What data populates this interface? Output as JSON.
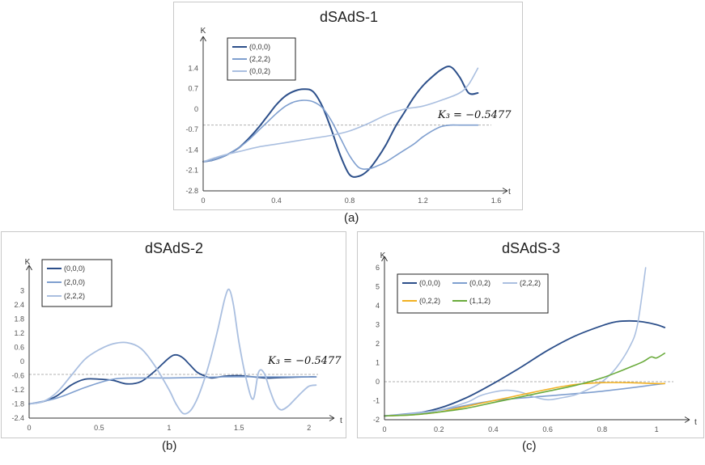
{
  "colors": {
    "dark": "#2c4f8a",
    "medium": "#7f9fcf",
    "light": "#aabfe0",
    "yellow": "#f2b122",
    "green": "#6aab3c",
    "ref": "#b0b0b0"
  },
  "chart_data": [
    {
      "type": "line",
      "title": "dSAdS-1",
      "caption": "(a)",
      "xlabel": "t",
      "ylabel": "K",
      "xlim": [
        0,
        1.6
      ],
      "ylim": [
        -2.8,
        2.1
      ],
      "xticks": [
        0,
        0.4,
        0.8,
        1.2,
        1.6
      ],
      "xtick_labels": [
        "0",
        "0.4",
        "0.8",
        "1.2",
        "1.6"
      ],
      "yticks": [
        1.4,
        0.7,
        0,
        -0.7,
        -1.4,
        -2.1,
        -2.8
      ],
      "ytick_labels": [
        "1.4",
        "0.7",
        "0",
        "-0.7",
        "-1.4",
        "-2.1",
        "-2.8"
      ],
      "reference_line": -0.5477,
      "annotation": "K₃ = −0.5477",
      "series": [
        {
          "name": "(0,0,0)",
          "color": "#2c4f8a",
          "width": 2.0,
          "x": [
            0,
            0.05,
            0.1,
            0.15,
            0.2,
            0.25,
            0.3,
            0.35,
            0.4,
            0.45,
            0.5,
            0.55,
            0.6,
            0.65,
            0.7,
            0.75,
            0.8,
            0.85,
            0.9,
            0.95,
            1.0,
            1.05,
            1.1,
            1.15,
            1.2,
            1.25,
            1.3,
            1.35,
            1.4,
            1.45,
            1.5
          ],
          "y": [
            -1.8,
            -1.75,
            -1.65,
            -1.5,
            -1.3,
            -1.0,
            -0.65,
            -0.25,
            0.15,
            0.45,
            0.62,
            0.68,
            0.6,
            0.1,
            -0.7,
            -1.6,
            -2.25,
            -2.3,
            -2.1,
            -1.7,
            -1.2,
            -0.6,
            -0.1,
            0.4,
            0.8,
            1.1,
            1.35,
            1.45,
            1.1,
            0.55,
            0.55
          ]
        },
        {
          "name": "(2,2,2)",
          "color": "#7f9fcf",
          "width": 1.6,
          "x": [
            0,
            0.05,
            0.1,
            0.15,
            0.2,
            0.25,
            0.3,
            0.35,
            0.4,
            0.45,
            0.5,
            0.55,
            0.6,
            0.65,
            0.7,
            0.75,
            0.8,
            0.85,
            0.9,
            0.95,
            1.0,
            1.05,
            1.1,
            1.15,
            1.2,
            1.25,
            1.3,
            1.35,
            1.4,
            1.45,
            1.5
          ],
          "y": [
            -1.8,
            -1.75,
            -1.65,
            -1.5,
            -1.3,
            -1.05,
            -0.75,
            -0.45,
            -0.15,
            0.1,
            0.25,
            0.3,
            0.25,
            0.05,
            -0.4,
            -1.0,
            -1.6,
            -2.0,
            -2.05,
            -1.95,
            -1.8,
            -1.6,
            -1.4,
            -1.2,
            -0.95,
            -0.75,
            -0.6,
            -0.55,
            -0.55,
            -0.55,
            -0.55
          ]
        },
        {
          "name": "(0,0,2)",
          "color": "#aabfe0",
          "width": 1.6,
          "x": [
            0,
            0.1,
            0.2,
            0.3,
            0.4,
            0.5,
            0.6,
            0.7,
            0.8,
            0.9,
            1.0,
            1.1,
            1.2,
            1.3,
            1.4,
            1.45,
            1.5
          ],
          "y": [
            -1.8,
            -1.6,
            -1.45,
            -1.3,
            -1.2,
            -1.1,
            -1.0,
            -0.9,
            -0.75,
            -0.5,
            -0.2,
            0.0,
            0.1,
            0.3,
            0.55,
            0.85,
            1.4
          ]
        }
      ]
    },
    {
      "type": "line",
      "title": "dSAdS-2",
      "caption": "(b)",
      "xlabel": "t",
      "ylabel": "K",
      "xlim": [
        0,
        2.1
      ],
      "ylim": [
        -2.4,
        3.6
      ],
      "xticks": [
        0,
        0.5,
        1,
        1.5,
        2
      ],
      "xtick_labels": [
        "0",
        "0.5",
        "1",
        "1.5",
        "2"
      ],
      "yticks": [
        3,
        2.4,
        1.8,
        1.2,
        0.6,
        0,
        -0.6,
        -1.2,
        -1.8,
        -2.4
      ],
      "ytick_labels": [
        "3",
        "2.4",
        "1.8",
        "1.2",
        "0.6",
        "0",
        "-0.6",
        "-1.2",
        "-1.8",
        "-2.4"
      ],
      "reference_line": -0.5477,
      "annotation": "K₃ = −0.5477",
      "series": [
        {
          "name": "(0,0,0)",
          "color": "#2c4f8a",
          "width": 1.8,
          "x": [
            0,
            0.1,
            0.2,
            0.3,
            0.4,
            0.5,
            0.6,
            0.7,
            0.8,
            0.9,
            1.0,
            1.05,
            1.1,
            1.15,
            1.2,
            1.25,
            1.3,
            1.4,
            1.5,
            1.6,
            1.7,
            1.8,
            1.9,
            2.0,
            2.05
          ],
          "y": [
            -1.8,
            -1.7,
            -1.45,
            -1.0,
            -0.75,
            -0.75,
            -0.8,
            -0.95,
            -0.85,
            -0.4,
            0.15,
            0.28,
            0.15,
            -0.15,
            -0.45,
            -0.6,
            -0.7,
            -0.62,
            -0.6,
            -0.65,
            -0.7,
            -0.68,
            -0.66,
            -0.65,
            -0.65
          ]
        },
        {
          "name": "(2,0,0)",
          "color": "#7f9fcf",
          "width": 1.6,
          "x": [
            0,
            0.2,
            0.4,
            0.6,
            0.8,
            1.0,
            1.2,
            1.4,
            1.6,
            1.8,
            2.05
          ],
          "y": [
            -1.8,
            -1.55,
            -1.1,
            -0.75,
            -0.7,
            -0.7,
            -0.68,
            -0.65,
            -0.65,
            -0.65,
            -0.65
          ]
        },
        {
          "name": "(2,2,2)",
          "color": "#aabfe0",
          "width": 1.8,
          "x": [
            0,
            0.1,
            0.2,
            0.3,
            0.4,
            0.5,
            0.6,
            0.7,
            0.8,
            0.9,
            1.0,
            1.05,
            1.1,
            1.15,
            1.2,
            1.25,
            1.3,
            1.35,
            1.4,
            1.43,
            1.46,
            1.5,
            1.55,
            1.6,
            1.64,
            1.68,
            1.72,
            1.76,
            1.8,
            1.85,
            1.9,
            1.95,
            2.0,
            2.05
          ],
          "y": [
            -1.8,
            -1.7,
            -1.3,
            -0.6,
            0.1,
            0.5,
            0.75,
            0.8,
            0.55,
            -0.2,
            -1.2,
            -1.8,
            -2.2,
            -2.1,
            -1.6,
            -0.8,
            0.2,
            1.4,
            2.7,
            3.05,
            2.4,
            0.8,
            -0.7,
            -1.6,
            -0.45,
            -0.5,
            -1.2,
            -1.8,
            -2.05,
            -1.9,
            -1.6,
            -1.3,
            -1.05,
            -1.0
          ]
        }
      ]
    },
    {
      "type": "line",
      "title": "dSAdS-3",
      "caption": "(c)",
      "xlabel": "t",
      "ylabel": "K",
      "xlim": [
        0,
        1.08
      ],
      "ylim": [
        -2,
        6
      ],
      "xticks": [
        0,
        0.2,
        0.4,
        0.6,
        0.8,
        1
      ],
      "xtick_labels": [
        "0",
        "0.2",
        "0.4",
        "0.6",
        "0.8",
        "1"
      ],
      "yticks": [
        6,
        5,
        4,
        3,
        2,
        1,
        0,
        -1,
        -2
      ],
      "ytick_labels": [
        "6",
        "5",
        "4",
        "3",
        "2",
        "1",
        "0",
        "-1",
        "-2"
      ],
      "reference_line": 0,
      "annotation": "",
      "series": [
        {
          "name": "(0,0,0)",
          "color": "#2c4f8a",
          "width": 1.8,
          "x": [
            0,
            0.1,
            0.2,
            0.3,
            0.4,
            0.5,
            0.6,
            0.7,
            0.8,
            0.85,
            0.9,
            0.95,
            1.0,
            1.03
          ],
          "y": [
            -1.8,
            -1.7,
            -1.4,
            -0.85,
            -0.1,
            0.75,
            1.65,
            2.4,
            2.95,
            3.15,
            3.2,
            3.15,
            3.0,
            2.85
          ]
        },
        {
          "name": "(0,0,2)",
          "color": "#7f9fcf",
          "width": 1.6,
          "x": [
            0,
            0.2,
            0.4,
            0.6,
            0.8,
            1.0,
            1.03
          ],
          "y": [
            -1.8,
            -1.5,
            -1.0,
            -0.75,
            -0.5,
            -0.15,
            -0.1
          ]
        },
        {
          "name": "(2,2,2)",
          "color": "#aabfe0",
          "width": 1.6,
          "x": [
            0,
            0.1,
            0.2,
            0.3,
            0.35,
            0.4,
            0.45,
            0.5,
            0.55,
            0.6,
            0.65,
            0.7,
            0.75,
            0.8,
            0.85,
            0.9,
            0.93,
            0.96
          ],
          "y": [
            -1.8,
            -1.7,
            -1.5,
            -1.1,
            -0.75,
            -0.55,
            -0.45,
            -0.55,
            -0.8,
            -0.95,
            -0.85,
            -0.7,
            -0.4,
            0.0,
            0.7,
            1.8,
            3.0,
            6.0
          ]
        },
        {
          "name": "(0,2,2)",
          "color": "#f2b122",
          "width": 1.6,
          "x": [
            0,
            0.1,
            0.2,
            0.3,
            0.4,
            0.5,
            0.6,
            0.7,
            0.8,
            0.9,
            1.0,
            1.03
          ],
          "y": [
            -1.8,
            -1.75,
            -1.6,
            -1.3,
            -1.0,
            -0.7,
            -0.4,
            -0.15,
            -0.05,
            -0.05,
            -0.1,
            -0.1
          ]
        },
        {
          "name": "(1,1,2)",
          "color": "#6aab3c",
          "width": 1.6,
          "x": [
            0,
            0.1,
            0.2,
            0.3,
            0.4,
            0.5,
            0.6,
            0.7,
            0.8,
            0.9,
            0.95,
            0.98,
            1.0,
            1.03
          ],
          "y": [
            -1.8,
            -1.75,
            -1.6,
            -1.4,
            -1.1,
            -0.8,
            -0.5,
            -0.2,
            0.2,
            0.75,
            1.05,
            1.3,
            1.25,
            1.5
          ]
        }
      ]
    }
  ]
}
